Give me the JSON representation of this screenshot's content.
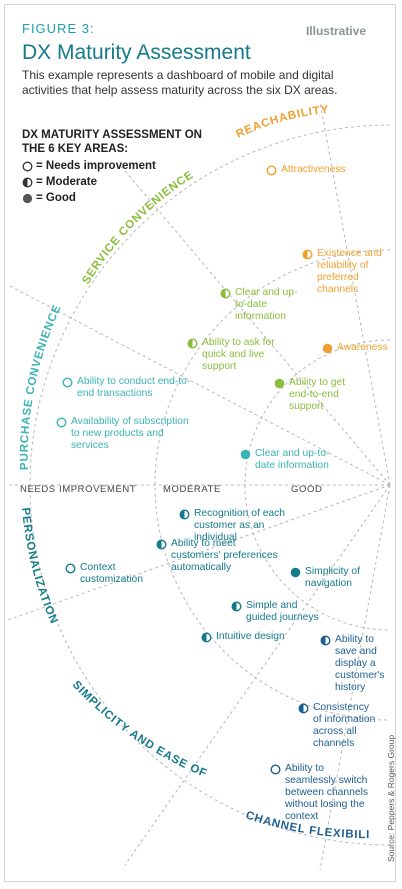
{
  "header": {
    "figure": "FIGURE 3:",
    "badge": "Illustrative",
    "title": "DX Maturity Assessment",
    "subtitle": "This example represents a dashboard of mobile and digital activities that help assess maturity across the six DX areas."
  },
  "legend": {
    "title": "DX MATURITY ASSESSMENT ON THE 6 KEY AREAS:",
    "items": [
      {
        "level": "none",
        "label": "= Needs improvement"
      },
      {
        "level": "half",
        "label": "= Moderate"
      },
      {
        "level": "full",
        "label": "= Good"
      }
    ]
  },
  "scale": {
    "needs": "NEEDS IMPROVEMENT",
    "moderate": "MODERATE",
    "good": "GOOD"
  },
  "areas": {
    "reachability": "REACHABILITY",
    "service": "SERVICE CONVENIENCE",
    "purchase": "PURCHASE CONVENIENCE",
    "personalization": "PERSONALIZATION",
    "simplicity": "SIMPLICITY AND EASE OF USE",
    "channel": "CHANNEL FLEXIBILITY"
  },
  "colors": {
    "reachability": "#f0a030",
    "service": "#8bbd3c",
    "purchase": "#3bb3b3",
    "personalization": "#157a8c",
    "simplicity": "#157a8c",
    "channel": "#1f5f8f",
    "grid": "#b8b8b8"
  },
  "items": [
    {
      "id": "attractiveness",
      "area": "reachability",
      "level": "none",
      "text": "Attractiveness"
    },
    {
      "id": "existence",
      "area": "reachability",
      "level": "half",
      "text": "Existence and reliability of preferred channels"
    },
    {
      "id": "awareness",
      "area": "reachability",
      "level": "full",
      "text": "Awareness"
    },
    {
      "id": "clear-service",
      "area": "service",
      "level": "half",
      "text": "Clear and up-to-date information"
    },
    {
      "id": "ask",
      "area": "service",
      "level": "half",
      "text": "Ability to ask for quick and live support"
    },
    {
      "id": "e2e",
      "area": "service",
      "level": "full",
      "text": "Ability to get end-to-end support"
    },
    {
      "id": "e2e-tx",
      "area": "purchase",
      "level": "none",
      "text": "Ability to conduct end-to-end transactions"
    },
    {
      "id": "subscription",
      "area": "purchase",
      "level": "none",
      "text": "Availability of subscription to new products and services"
    },
    {
      "id": "clear-purchase",
      "area": "purchase",
      "level": "full",
      "text": "Clear and up-to-date information"
    },
    {
      "id": "recognition",
      "area": "personalization",
      "level": "half",
      "text": "Recognition of each customer as an individual"
    },
    {
      "id": "preferences",
      "area": "personalization",
      "level": "half",
      "text": "Ability to meet customers' preferences automatically"
    },
    {
      "id": "context",
      "area": "personalization",
      "level": "none",
      "text": "Context customization"
    },
    {
      "id": "navigation",
      "area": "simplicity",
      "level": "full",
      "text": "Simplicity of navigation"
    },
    {
      "id": "journeys",
      "area": "simplicity",
      "level": "half",
      "text": "Simple and guided journeys"
    },
    {
      "id": "intuitive",
      "area": "simplicity",
      "level": "half",
      "text": "Intuitive design"
    },
    {
      "id": "save",
      "area": "channel",
      "level": "half",
      "text": "Ability to save and display a customer's history"
    },
    {
      "id": "consistency",
      "area": "channel",
      "level": "half",
      "text": "Consistency of information across all channels"
    },
    {
      "id": "switch",
      "area": "channel",
      "level": "none",
      "text": "Ability to seamlessly switch between channels without losing the context"
    }
  ],
  "source": "Source: Peppers & Rogers Group"
}
